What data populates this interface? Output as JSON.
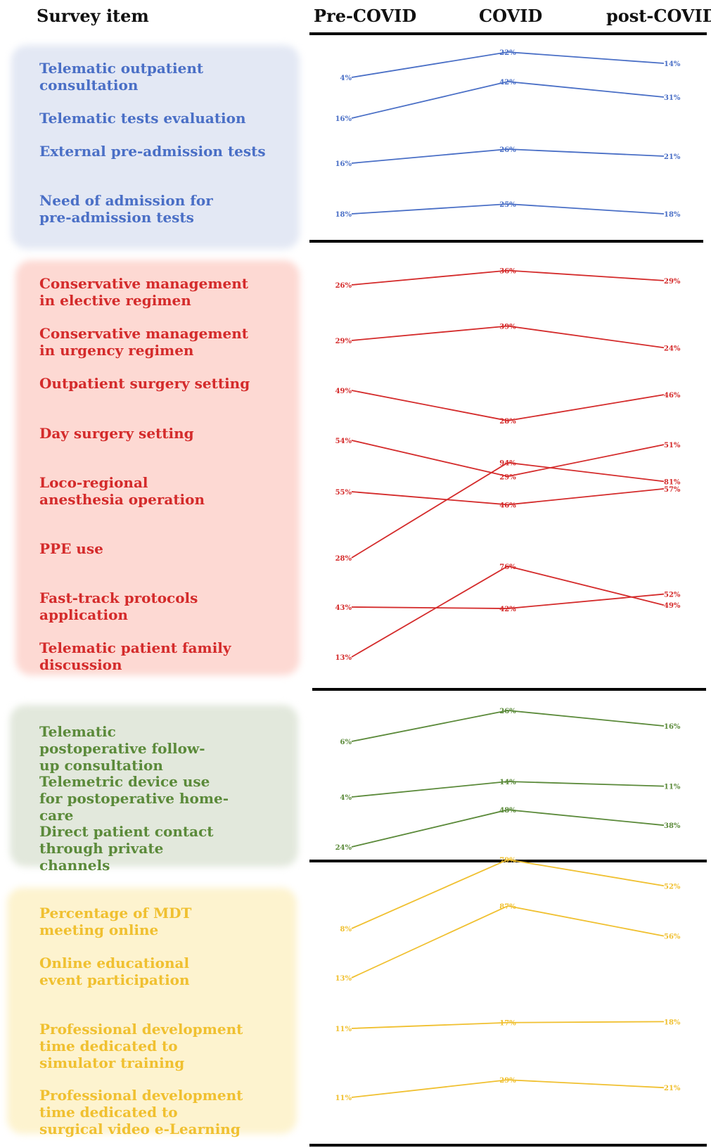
{
  "header": {
    "survey_item": "Survey item",
    "pre": "Pre-COVID",
    "covid": "COVID",
    "post": "post-COVID"
  },
  "groups": [
    {
      "color": "#4a6fc6",
      "bg": "#e3e8f4",
      "items": [
        {
          "label": "Telematic outpatient consultation",
          "values": [
            4,
            22,
            14
          ]
        },
        {
          "label": "Telematic tests evaluation",
          "values": [
            16,
            42,
            31
          ]
        },
        {
          "label": "External pre-admission tests",
          "values": [
            16,
            26,
            21
          ]
        },
        {
          "label": "Need of admission for pre-admission tests",
          "values": [
            18,
            25,
            18
          ]
        }
      ]
    },
    {
      "color": "#d42b2b",
      "bg": "#fdd9d3",
      "items": [
        {
          "label": "Conservative management in elective regimen",
          "values": [
            26,
            36,
            29
          ]
        },
        {
          "label": "Conservative management in urgency regimen",
          "values": [
            29,
            39,
            24
          ]
        },
        {
          "label": "Outpatient surgery setting",
          "values": [
            49,
            28,
            46
          ]
        },
        {
          "label": "Day surgery setting",
          "values": [
            54,
            29,
            51
          ]
        },
        {
          "label": "Loco-regional anesthesia operation",
          "values": [
            55,
            46,
            57
          ]
        },
        {
          "label": "PPE use",
          "values": [
            28,
            94,
            81
          ]
        },
        {
          "label": "Fast-track protocols application",
          "values": [
            43,
            42,
            52
          ]
        },
        {
          "label": "Telematic patient family discussion",
          "values": [
            13,
            76,
            49
          ]
        }
      ]
    },
    {
      "color": "#5b8a3a",
      "bg": "#e2e8dc",
      "items": [
        {
          "label": "Telematic postoperative follow-up consultation",
          "values": [
            6,
            26,
            16
          ]
        },
        {
          "label": "Telemetric device use for postoperative home-care",
          "values": [
            4,
            14,
            11
          ]
        },
        {
          "label": "Direct patient contact through private channels",
          "values": [
            24,
            48,
            38
          ]
        }
      ]
    },
    {
      "color": "#f0c030",
      "bg": "#fdf3cf",
      "items": [
        {
          "label": "Percentage of MDT meeting online",
          "values": [
            8,
            79,
            52
          ]
        },
        {
          "label": "Online educational event participation",
          "values": [
            13,
            87,
            56
          ]
        },
        {
          "label": "Professional development time dedicated to simulator training",
          "values": [
            11,
            17,
            18
          ]
        },
        {
          "label": "Professional development time dedicated to surgical video e-Learning",
          "values": [
            11,
            29,
            21
          ]
        }
      ]
    }
  ],
  "chart_data": {
    "type": "line",
    "categories": [
      "Pre-COVID",
      "COVID",
      "post-COVID"
    ],
    "series": [
      {
        "name": "Telematic outpatient consultation",
        "values": [
          4,
          22,
          14
        ]
      },
      {
        "name": "Telematic tests evaluation",
        "values": [
          16,
          42,
          31
        ]
      },
      {
        "name": "External pre-admission tests",
        "values": [
          16,
          26,
          21
        ]
      },
      {
        "name": "Need of admission for pre-admission tests",
        "values": [
          18,
          25,
          18
        ]
      },
      {
        "name": "Conservative management in elective regimen",
        "values": [
          26,
          36,
          29
        ]
      },
      {
        "name": "Conservative management in urgency regimen",
        "values": [
          29,
          39,
          24
        ]
      },
      {
        "name": "Outpatient surgery setting",
        "values": [
          49,
          28,
          46
        ]
      },
      {
        "name": "Day surgery setting",
        "values": [
          54,
          29,
          51
        ]
      },
      {
        "name": "Loco-regional anesthesia operation",
        "values": [
          55,
          46,
          57
        ]
      },
      {
        "name": "PPE use",
        "values": [
          28,
          94,
          81
        ]
      },
      {
        "name": "Fast-track protocols application",
        "values": [
          43,
          42,
          52
        ]
      },
      {
        "name": "Telematic patient family discussion",
        "values": [
          13,
          76,
          49
        ]
      },
      {
        "name": "Telematic postoperative follow-up consultation",
        "values": [
          6,
          26,
          16
        ]
      },
      {
        "name": "Telemetric device use for postoperative home-care",
        "values": [
          4,
          14,
          11
        ]
      },
      {
        "name": "Direct patient contact through private channels",
        "values": [
          24,
          48,
          38
        ]
      },
      {
        "name": "Percentage of MDT meeting online",
        "values": [
          8,
          79,
          52
        ]
      },
      {
        "name": "Online educational event participation",
        "values": [
          13,
          87,
          56
        ]
      },
      {
        "name": "Professional development time dedicated to simulator training",
        "values": [
          11,
          17,
          18
        ]
      },
      {
        "name": "Professional development time dedicated to surgical video e-Learning",
        "values": [
          11,
          29,
          21
        ]
      }
    ],
    "value_suffix": "%",
    "grid": false,
    "legend": "none"
  }
}
